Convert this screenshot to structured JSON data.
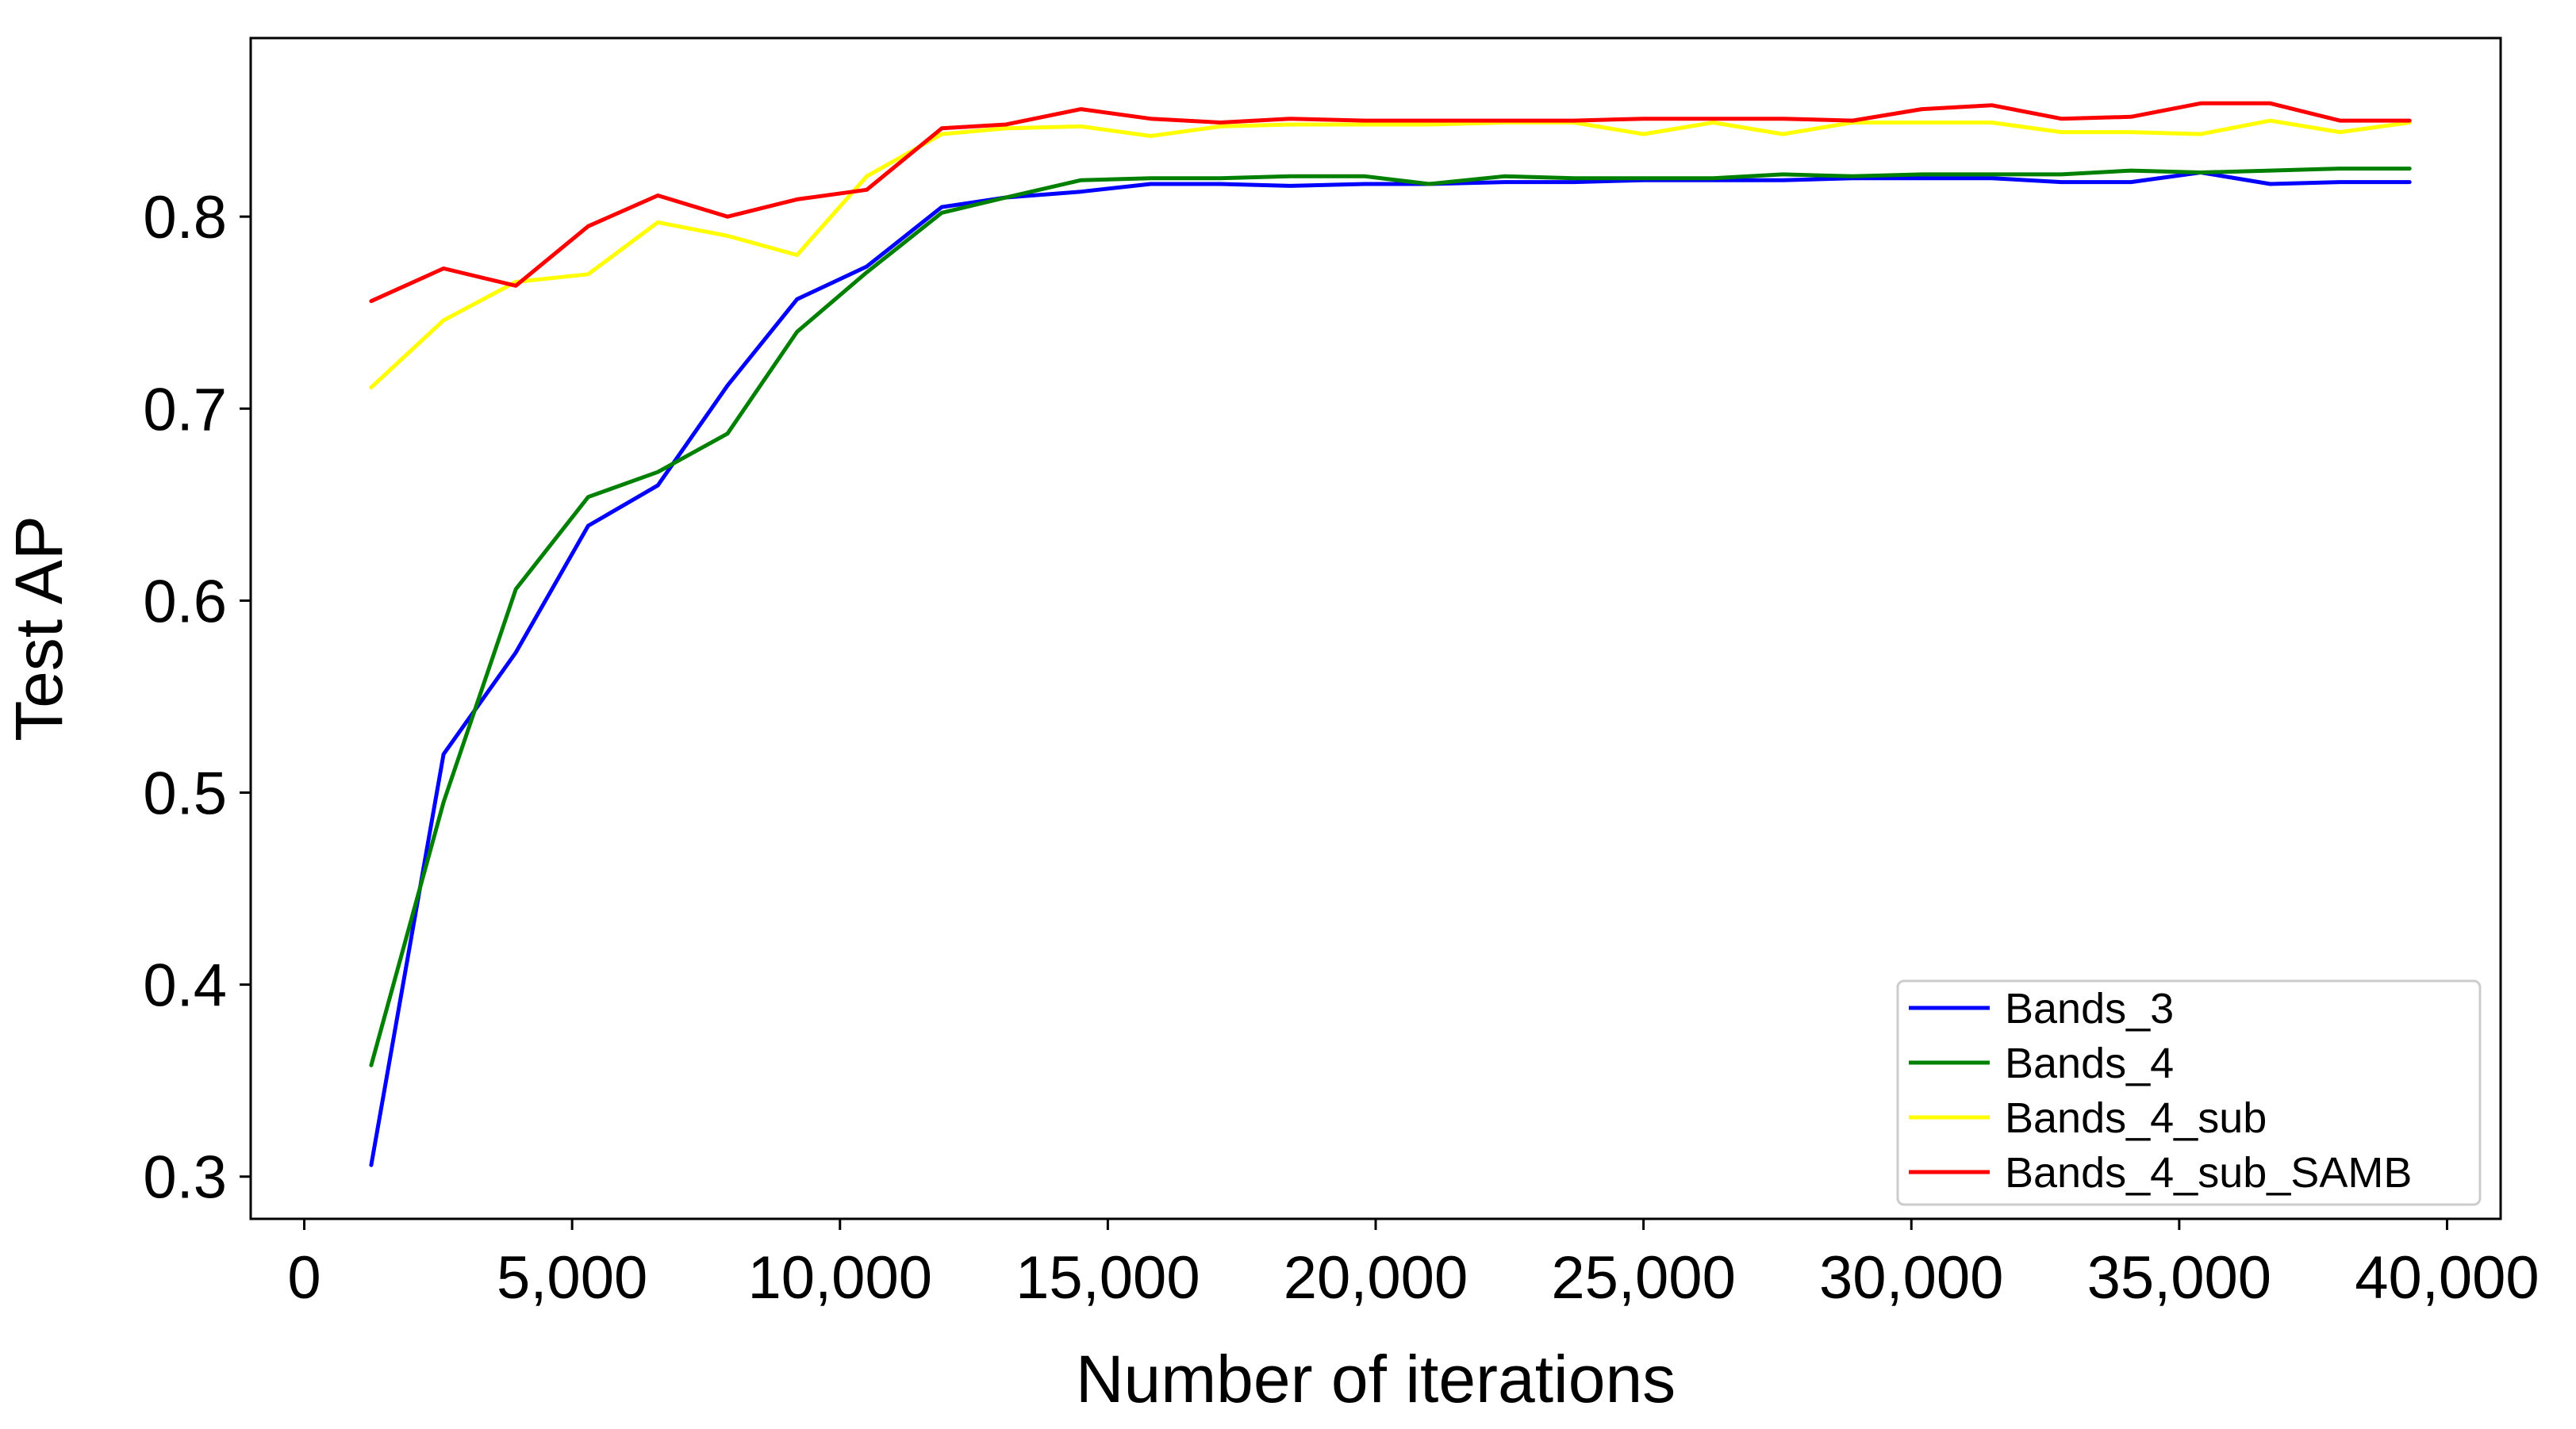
{
  "chart_data": {
    "type": "line",
    "title": "",
    "xlabel": "Number of iterations",
    "ylabel": "Test AP",
    "xlim": [
      -1000,
      41000
    ],
    "ylim": [
      0.278,
      0.893
    ],
    "xticks": [
      0,
      5000,
      10000,
      15000,
      20000,
      25000,
      30000,
      35000,
      40000
    ],
    "xtick_labels": [
      "0",
      "5,000",
      "10,000",
      "15,000",
      "20,000",
      "25,000",
      "30,000",
      "35,000",
      "40,000"
    ],
    "yticks": [
      0.3,
      0.4,
      0.5,
      0.6,
      0.7,
      0.8
    ],
    "ytick_labels": [
      "0.3",
      "0.4",
      "0.5",
      "0.6",
      "0.7",
      "0.8"
    ],
    "grid": false,
    "legend_position": "lower-right",
    "x": [
      1250,
      2600,
      3950,
      5300,
      6600,
      7900,
      9200,
      10500,
      11900,
      13100,
      14500,
      15800,
      17100,
      18400,
      19800,
      21000,
      22400,
      23700,
      25000,
      26300,
      27600,
      28900,
      30200,
      31500,
      32800,
      34100,
      35400,
      36700,
      38000,
      39300
    ],
    "series": [
      {
        "name": "Bands_3",
        "color": "#0000ff",
        "values": [
          0.306,
          0.52,
          0.573,
          0.639,
          0.66,
          0.712,
          0.757,
          0.774,
          0.805,
          0.81,
          0.813,
          0.817,
          0.817,
          0.816,
          0.817,
          0.817,
          0.818,
          0.818,
          0.819,
          0.819,
          0.819,
          0.82,
          0.82,
          0.82,
          0.818,
          0.818,
          0.823,
          0.817,
          0.818,
          0.818
        ]
      },
      {
        "name": "Bands_4",
        "color": "#008000",
        "values": [
          0.358,
          0.495,
          0.606,
          0.654,
          0.667,
          0.687,
          0.74,
          0.771,
          0.802,
          0.81,
          0.819,
          0.82,
          0.82,
          0.821,
          0.821,
          0.817,
          0.821,
          0.82,
          0.82,
          0.82,
          0.822,
          0.821,
          0.822,
          0.822,
          0.822,
          0.824,
          0.823,
          0.824,
          0.825,
          0.825
        ]
      },
      {
        "name": "Bands_4_sub",
        "color": "#ffff00",
        "values": [
          0.711,
          0.746,
          0.766,
          0.77,
          0.797,
          0.79,
          0.78,
          0.821,
          0.843,
          0.846,
          0.847,
          0.842,
          0.847,
          0.848,
          0.848,
          0.848,
          0.849,
          0.849,
          0.843,
          0.849,
          0.843,
          0.849,
          0.849,
          0.849,
          0.844,
          0.844,
          0.843,
          0.85,
          0.844,
          0.849
        ]
      },
      {
        "name": "Bands_4_sub_SAMB",
        "color": "#ff0000",
        "values": [
          0.756,
          0.773,
          0.764,
          0.795,
          0.811,
          0.8,
          0.809,
          0.814,
          0.846,
          0.848,
          0.856,
          0.851,
          0.849,
          0.851,
          0.85,
          0.85,
          0.85,
          0.85,
          0.851,
          0.851,
          0.851,
          0.85,
          0.856,
          0.858,
          0.851,
          0.852,
          0.859,
          0.859,
          0.85,
          0.85
        ]
      }
    ]
  }
}
